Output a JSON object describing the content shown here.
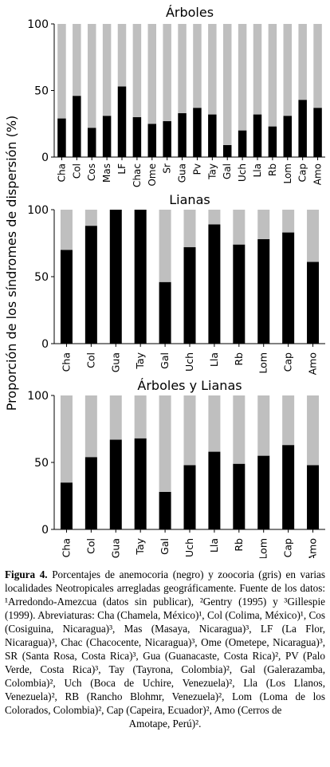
{
  "figure": {
    "ylabel": "Proporción de los síndromes de dispersión (%)",
    "colors": {
      "anemocoria": "#000000",
      "zoocoria": "#bfbfbf"
    },
    "chart_data": [
      {
        "type": "bar",
        "stacked": true,
        "title": "Árboles",
        "ylim": [
          0,
          100
        ],
        "yticks": [
          "0",
          "50",
          "100"
        ],
        "categories": [
          "Cha",
          "Col",
          "Cos",
          "Mas",
          "LF",
          "Chac",
          "Ome",
          "Sr",
          "Gua",
          "Pv",
          "Tay",
          "Gal",
          "Uch",
          "Lla",
          "Rb",
          "Lom",
          "Cap",
          "Amo"
        ],
        "series": [
          {
            "values": [
              29,
              46,
              22,
              31,
              53,
              30,
              25,
              27,
              33,
              37,
              32,
              9,
              20,
              32,
              23,
              31,
              43,
              37
            ]
          },
          {
            "values": [
              71,
              54,
              78,
              69,
              47,
              70,
              75,
              73,
              67,
              63,
              68,
              91,
              80,
              68,
              77,
              69,
              57,
              63
            ]
          }
        ]
      },
      {
        "type": "bar",
        "stacked": true,
        "title": "Lianas",
        "ylim": [
          0,
          100
        ],
        "yticks": [
          "0",
          "50",
          "100"
        ],
        "categories": [
          "Cha",
          "Col",
          "Gua",
          "Tay",
          "Gal",
          "Uch",
          "Lla",
          "Rb",
          "Lom",
          "Cap",
          "Amo"
        ],
        "series": [
          {
            "values": [
              70,
              88,
              100,
              100,
              46,
              72,
              89,
              74,
              78,
              83,
              61
            ]
          },
          {
            "values": [
              30,
              12,
              0,
              0,
              54,
              28,
              11,
              26,
              22,
              17,
              39
            ]
          }
        ]
      },
      {
        "type": "bar",
        "stacked": true,
        "title": "Árboles y Lianas",
        "ylim": [
          0,
          100
        ],
        "yticks": [
          "0",
          "50",
          "100"
        ],
        "categories": [
          "Cha",
          "Col",
          "Gua",
          "Tay",
          "Gal",
          "Uch",
          "Lla",
          "Rb",
          "Lom",
          "Cap",
          "Amo"
        ],
        "series": [
          {
            "values": [
              35,
              54,
              67,
              68,
              28,
              48,
              58,
              49,
              55,
              63,
              48
            ]
          },
          {
            "values": [
              65,
              46,
              33,
              32,
              72,
              52,
              42,
              51,
              45,
              37,
              52
            ]
          }
        ]
      }
    ]
  },
  "caption": {
    "label": "Figura 4.",
    "text": " Porcentajes de anemocoria (negro) y zoocoria (gris) en varias localidades Neotropicales arregladas geográficamente. Fuente de los datos: ¹Arredondo-Amezcua (datos sin publicar), ²Gentry (1995) y ³Gillespie (1999). Abreviaturas: Cha (Chamela, México)¹, Col (Colima, México)¹, Cos (Cosiguina, Nicaragua)³, Mas (Masaya, Nicaragua)³, LF (La Flor, Nicaragua)³, Chac (Chacocente, Nicaragua)³, Ome (Ometepe, Nicaragua)³, SR (Santa Rosa, Costa Rica)³, Gua (Guanacaste, Costa Rica)², PV (Palo Verde, Costa Rica)³, Tay (Tayrona, Colombia)², Gal (Galerazamba, Colombia)², Uch (Boca de Uchire, Venezuela)², Lla (Los Llanos, Venezuela)², RB (Rancho Blohmr, Venezuela)², Lom (Loma de los Colorados, Colombia)², Cap (Capeira, Ecuador)², Amo (Cerros de",
    "last_line": "Amotape, Perú)²."
  }
}
